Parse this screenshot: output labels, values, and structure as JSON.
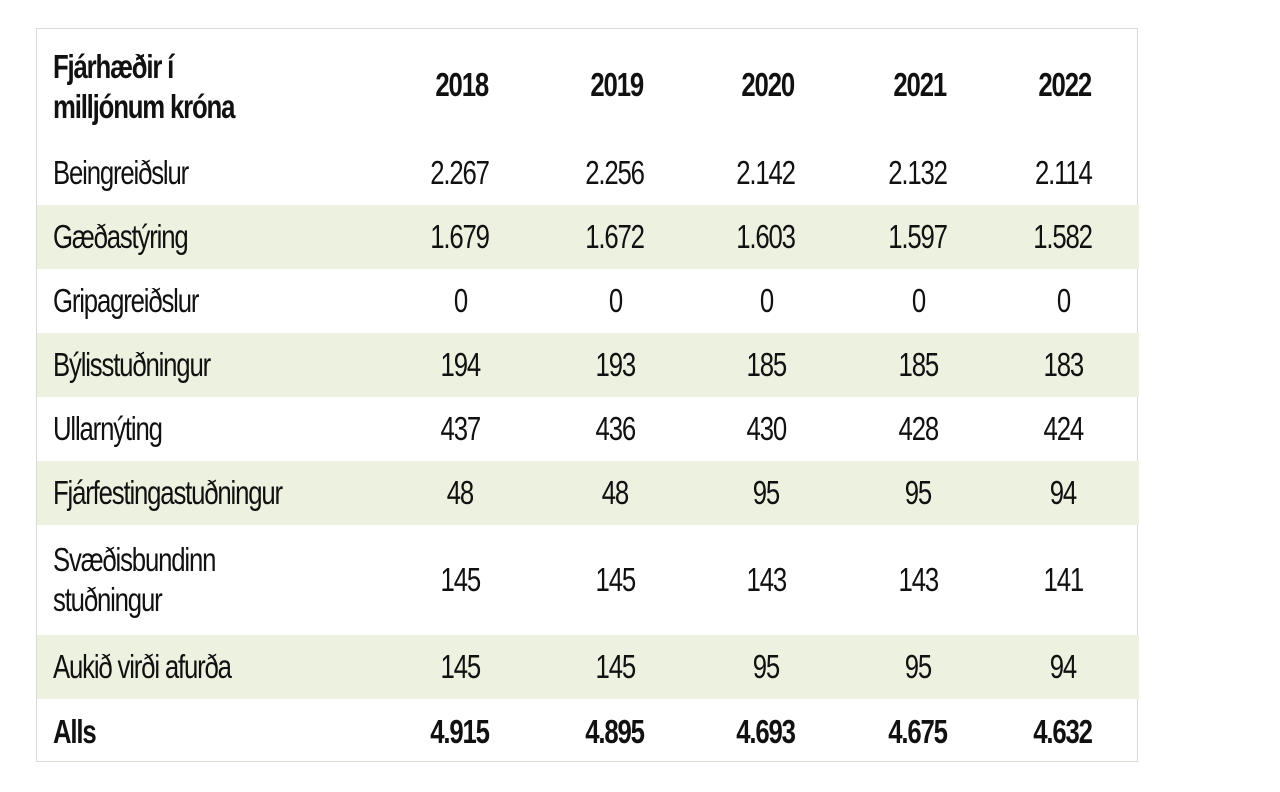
{
  "table": {
    "header": {
      "label_line1": "Fjárhæðir í",
      "label_line2": "milljónum króna",
      "years": [
        "2018",
        "2019",
        "2020",
        "2021",
        "2022"
      ]
    },
    "rows": [
      {
        "label": "Beingreiðslur",
        "values": [
          "2.267",
          "2.256",
          "2.142",
          "2.132",
          "2.114"
        ],
        "shaded": false
      },
      {
        "label": "Gæðastýring",
        "values": [
          "1.679",
          "1.672",
          "1.603",
          "1.597",
          "1.582"
        ],
        "shaded": true
      },
      {
        "label": "Gripagreiðslur",
        "values": [
          "0",
          "0",
          "0",
          "0",
          "0"
        ],
        "shaded": false
      },
      {
        "label": "Býlisstuðningur",
        "values": [
          "194",
          "193",
          "185",
          "185",
          "183"
        ],
        "shaded": true
      },
      {
        "label": "Ullarnýting",
        "values": [
          "437",
          "436",
          "430",
          "428",
          "424"
        ],
        "shaded": false
      },
      {
        "label": "Fjárfestingastuðningur",
        "values": [
          "48",
          "48",
          "95",
          "95",
          "94"
        ],
        "shaded": true
      },
      {
        "label_line1": "Svæðisbundinn",
        "label_line2": "stuðningur",
        "values": [
          "145",
          "145",
          "143",
          "143",
          "141"
        ],
        "shaded": false
      },
      {
        "label": "Aukið virði afurða",
        "values": [
          "145",
          "145",
          "95",
          "95",
          "94"
        ],
        "shaded": true
      }
    ],
    "total": {
      "label": "Alls",
      "values": [
        "4.915",
        "4.895",
        "4.693",
        "4.675",
        "4.632"
      ]
    }
  },
  "colors": {
    "shaded_row": "#edf1e0",
    "border": "#d6ddd3",
    "text": "#111111"
  }
}
